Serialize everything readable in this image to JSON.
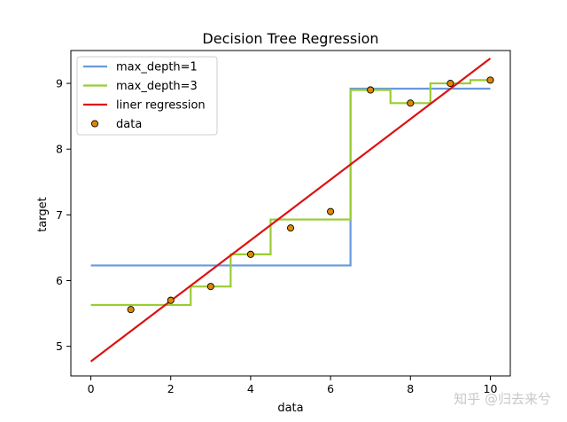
{
  "chart_data": {
    "type": "line",
    "title": "Decision Tree Regression",
    "xlabel": "data",
    "ylabel": "target",
    "xlim": [
      -0.5,
      10.5
    ],
    "ylim": [
      4.55,
      9.5
    ],
    "xticks": [
      0,
      2,
      4,
      6,
      8,
      10
    ],
    "yticks": [
      5,
      6,
      7,
      8,
      9
    ],
    "grid": false,
    "legend_position": "top-left",
    "series": [
      {
        "name": "max_depth=1",
        "kind": "step",
        "color": "#6699dd",
        "x": [
          0,
          6.5,
          6.5,
          10
        ],
        "y": [
          6.23,
          6.23,
          8.92,
          8.92
        ]
      },
      {
        "name": "max_depth=3",
        "kind": "step",
        "color": "#99cc33",
        "x": [
          0,
          2.5,
          2.5,
          3.5,
          3.5,
          4.5,
          4.5,
          6.5,
          6.5,
          7.5,
          7.5,
          8.5,
          8.5,
          9.5,
          9.5,
          10
        ],
        "y": [
          5.63,
          5.63,
          5.91,
          5.91,
          6.4,
          6.4,
          6.93,
          6.93,
          8.9,
          8.9,
          8.7,
          8.7,
          9.0,
          9.0,
          9.05,
          9.05
        ]
      },
      {
        "name": "liner regression",
        "kind": "line",
        "color": "#dd1111",
        "x": [
          0,
          10
        ],
        "y": [
          4.77,
          9.38
        ]
      },
      {
        "name": "data",
        "kind": "scatter",
        "color": "#dd8800",
        "x": [
          1,
          2,
          3,
          4,
          5,
          6,
          7,
          8,
          9,
          10
        ],
        "y": [
          5.56,
          5.7,
          5.91,
          6.4,
          6.8,
          7.05,
          8.9,
          8.7,
          9.0,
          9.05
        ]
      }
    ]
  },
  "watermark": "知乎 @归去来兮"
}
